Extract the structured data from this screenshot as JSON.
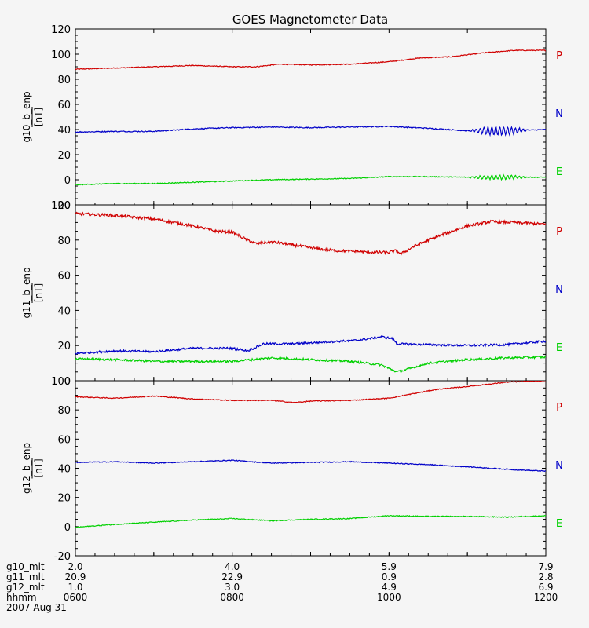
{
  "chart_data": {
    "type": "line",
    "title": "GOES Magnetometer Data",
    "x": {
      "tick_labels": [
        "0600",
        "0800",
        "1000",
        "1200"
      ],
      "range_hours": [
        6,
        12
      ]
    },
    "colors": {
      "P": "#d00000",
      "N": "#0000c8",
      "E": "#00d000",
      "axis": "#000000"
    },
    "panels": [
      {
        "ylabel": "g10_b_enp",
        "units": "[nT]",
        "ylim": [
          -20,
          120
        ],
        "yticks": [
          "-20",
          "0",
          "20",
          "40",
          "60",
          "80",
          "100",
          "120"
        ],
        "series": [
          {
            "name": "P",
            "noise": 0.35,
            "osc": [],
            "points": [
              [
                6,
                88
              ],
              [
                6.5,
                89
              ],
              [
                7,
                90
              ],
              [
                7.5,
                91
              ],
              [
                8,
                90
              ],
              [
                8.3,
                90
              ],
              [
                8.6,
                92
              ],
              [
                9,
                91.5
              ],
              [
                9.5,
                92
              ],
              [
                10,
                94
              ],
              [
                10.4,
                97
              ],
              [
                10.8,
                98
              ],
              [
                11.2,
                101
              ],
              [
                11.6,
                103
              ],
              [
                12,
                103
              ]
            ]
          },
          {
            "name": "N",
            "noise": 0.4,
            "osc": [
              [
                11.0,
                11.8,
                3.5,
                0.05
              ]
            ],
            "points": [
              [
                6,
                38
              ],
              [
                6.5,
                38.5
              ],
              [
                7,
                38.5
              ],
              [
                7.5,
                40.5
              ],
              [
                8,
                41.5
              ],
              [
                8.5,
                42
              ],
              [
                9,
                41.5
              ],
              [
                9.5,
                42
              ],
              [
                10,
                42.5
              ],
              [
                10.5,
                41
              ],
              [
                11,
                39
              ],
              [
                11.5,
                39
              ],
              [
                12,
                40
              ]
            ]
          },
          {
            "name": "E",
            "noise": 0.35,
            "osc": [
              [
                11.0,
                11.8,
                1.8,
                0.05
              ]
            ],
            "points": [
              [
                6,
                -4
              ],
              [
                6.5,
                -3
              ],
              [
                7,
                -3
              ],
              [
                7.5,
                -2
              ],
              [
                8,
                -1
              ],
              [
                8.5,
                0
              ],
              [
                9,
                0.5
              ],
              [
                9.5,
                1
              ],
              [
                10,
                2.5
              ],
              [
                10.5,
                2.5
              ],
              [
                11,
                2
              ],
              [
                11.5,
                2
              ],
              [
                12,
                2
              ]
            ]
          }
        ],
        "labels": [
          "P",
          "N",
          "E"
        ]
      },
      {
        "ylabel": "g11_b_enp",
        "units": "[nT]",
        "ylim": [
          0,
          100
        ],
        "yticks": [
          "0",
          "20",
          "40",
          "60",
          "80",
          "100"
        ],
        "series": [
          {
            "name": "P",
            "noise": 0.8,
            "osc": [],
            "points": [
              [
                6,
                95
              ],
              [
                6.5,
                94
              ],
              [
                7,
                92
              ],
              [
                7.5,
                88
              ],
              [
                7.7,
                86
              ],
              [
                7.8,
                85
              ],
              [
                8.0,
                84.5
              ],
              [
                8.15,
                81
              ],
              [
                8.3,
                78
              ],
              [
                8.5,
                79
              ],
              [
                8.8,
                77
              ],
              [
                9.1,
                75
              ],
              [
                9.3,
                74
              ],
              [
                9.6,
                73.5
              ],
              [
                9.8,
                73
              ],
              [
                10.0,
                73
              ],
              [
                10.1,
                74
              ],
              [
                10.15,
                72
              ],
              [
                10.3,
                76
              ],
              [
                10.5,
                80
              ],
              [
                10.8,
                85
              ],
              [
                11,
                88
              ],
              [
                11.3,
                90.5
              ],
              [
                11.6,
                90
              ],
              [
                12,
                89
              ]
            ]
          },
          {
            "name": "N",
            "noise": 0.6,
            "osc": [],
            "points": [
              [
                6,
                15.5
              ],
              [
                6.5,
                17
              ],
              [
                7,
                16.5
              ],
              [
                7.5,
                18.5
              ],
              [
                8,
                18.5
              ],
              [
                8.2,
                17
              ],
              [
                8.4,
                21
              ],
              [
                8.8,
                21
              ],
              [
                9.2,
                22
              ],
              [
                9.6,
                23
              ],
              [
                9.9,
                25
              ],
              [
                10.05,
                24
              ],
              [
                10.1,
                21
              ],
              [
                10.5,
                20.5
              ],
              [
                11,
                20
              ],
              [
                11.5,
                20.5
              ],
              [
                12,
                22.5
              ]
            ]
          },
          {
            "name": "E",
            "noise": 0.6,
            "osc": [],
            "points": [
              [
                6,
                12.5
              ],
              [
                6.5,
                12
              ],
              [
                7,
                11
              ],
              [
                7.5,
                11
              ],
              [
                8,
                11
              ],
              [
                8.5,
                13
              ],
              [
                9,
                12
              ],
              [
                9.5,
                11
              ],
              [
                9.9,
                9
              ],
              [
                10.1,
                5
              ],
              [
                10.2,
                6
              ],
              [
                10.5,
                10
              ],
              [
                11,
                12
              ],
              [
                11.5,
                13
              ],
              [
                12,
                13.5
              ]
            ]
          }
        ],
        "labels": [
          "P",
          "N",
          "E"
        ]
      },
      {
        "ylabel": "g12_b_enp",
        "units": "[nT]",
        "ylim": [
          -20,
          100
        ],
        "yticks": [
          "-20",
          "0",
          "20",
          "40",
          "60",
          "80",
          "100"
        ],
        "series": [
          {
            "name": "P",
            "noise": 0.3,
            "osc": [],
            "points": [
              [
                6,
                89
              ],
              [
                6.5,
                88
              ],
              [
                7,
                89.5
              ],
              [
                7.5,
                87.5
              ],
              [
                8,
                86.5
              ],
              [
                8.5,
                86.5
              ],
              [
                8.8,
                85
              ],
              [
                9,
                86
              ],
              [
                9.5,
                86.5
              ],
              [
                10,
                88
              ],
              [
                10.3,
                91
              ],
              [
                10.6,
                94
              ],
              [
                11,
                96
              ],
              [
                11.5,
                99
              ],
              [
                12,
                100
              ]
            ]
          },
          {
            "name": "N",
            "noise": 0.3,
            "osc": [],
            "points": [
              [
                6,
                44
              ],
              [
                6.5,
                44.5
              ],
              [
                7,
                43.5
              ],
              [
                7.5,
                44.5
              ],
              [
                8,
                45.5
              ],
              [
                8.5,
                43.5
              ],
              [
                9,
                44
              ],
              [
                9.5,
                44.5
              ],
              [
                10,
                43.5
              ],
              [
                10.5,
                42.5
              ],
              [
                10.8,
                41.5
              ],
              [
                11,
                41
              ],
              [
                11.3,
                40
              ],
              [
                11.6,
                39
              ],
              [
                12,
                38
              ]
            ]
          },
          {
            "name": "E",
            "noise": 0.3,
            "osc": [],
            "points": [
              [
                6,
                -0.5
              ],
              [
                6.5,
                1.5
              ],
              [
                7,
                3
              ],
              [
                7.5,
                4.5
              ],
              [
                8,
                5.5
              ],
              [
                8.5,
                4
              ],
              [
                9,
                5
              ],
              [
                9.5,
                5.5
              ],
              [
                10,
                7.5
              ],
              [
                10.5,
                7
              ],
              [
                11,
                7
              ],
              [
                11.5,
                6.5
              ],
              [
                12,
                7.5
              ]
            ]
          }
        ],
        "labels": [
          "P",
          "N",
          "E"
        ]
      }
    ],
    "footer": {
      "rows": [
        {
          "label": "g10_mlt",
          "values": [
            "2.0",
            "4.0",
            "5.9",
            "7.9"
          ]
        },
        {
          "label": "g11_mlt",
          "values": [
            "20.9",
            "22.9",
            "0.9",
            "2.8"
          ]
        },
        {
          "label": "g12_mlt",
          "values": [
            "1.0",
            "3.0",
            "4.9",
            "6.9"
          ]
        },
        {
          "label": "hhmm",
          "values": [
            "0600",
            "0800",
            "1000",
            "1200"
          ]
        }
      ],
      "date": "2007 Aug 31"
    }
  }
}
